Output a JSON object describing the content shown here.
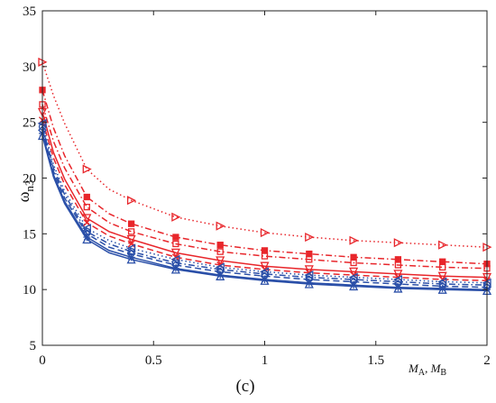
{
  "chart_data": {
    "type": "line",
    "ylabel": "ω",
    "ylabel_sub": "n3",
    "panel_label": "(c)",
    "inline_xlabel": "M",
    "inline_xlabel_sub_a": "A",
    "inline_xlabel_sep": ", M",
    "inline_xlabel_sub_b": "B",
    "xlim": [
      0,
      2
    ],
    "ylim": [
      5,
      35
    ],
    "xticks": [
      "0",
      "0.5",
      "1",
      "1.5",
      "2"
    ],
    "yticks": [
      "5",
      "10",
      "15",
      "20",
      "25",
      "30",
      "35"
    ],
    "x": [
      0,
      0.05,
      0.1,
      0.2,
      0.3,
      0.4,
      0.6,
      0.8,
      1.0,
      1.2,
      1.4,
      1.6,
      1.8,
      2.0
    ],
    "marker_x": [
      0,
      0.2,
      0.4,
      0.6,
      0.8,
      1.0,
      1.2,
      1.4,
      1.6,
      1.8,
      2.0
    ],
    "colors": {
      "red": "#e8262b",
      "blue": "#2a4fa8"
    },
    "series": [
      {
        "color": "red",
        "dash": "dotted",
        "marker": "triangle-right",
        "values": [
          30.4,
          27.4,
          24.9,
          20.8,
          19.0,
          18.0,
          16.5,
          15.7,
          15.1,
          14.7,
          14.4,
          14.2,
          14.0,
          13.8
        ]
      },
      {
        "color": "red",
        "dash": "dashdot",
        "marker": "square",
        "values": [
          27.9,
          24.5,
          22.0,
          18.3,
          16.8,
          15.9,
          14.7,
          14.0,
          13.5,
          13.2,
          12.9,
          12.7,
          12.5,
          12.3
        ]
      },
      {
        "color": "red",
        "dash": "dashdot",
        "marker": "square-open",
        "values": [
          26.6,
          23.3,
          20.9,
          17.4,
          16.0,
          15.2,
          14.1,
          13.4,
          13.0,
          12.7,
          12.4,
          12.2,
          12.0,
          11.9
        ]
      },
      {
        "color": "red",
        "dash": "solid",
        "marker": "triangle-down",
        "values": [
          25.9,
          22.3,
          19.9,
          16.4,
          15.2,
          14.5,
          13.3,
          12.6,
          12.1,
          11.8,
          11.6,
          11.4,
          11.2,
          11.1
        ]
      },
      {
        "color": "red",
        "dash": "dashed",
        "marker": "x",
        "values": [
          25.2,
          21.8,
          19.4,
          16.0,
          14.8,
          14.1,
          12.9,
          12.2,
          11.8,
          11.5,
          11.3,
          11.1,
          10.9,
          10.8
        ]
      },
      {
        "color": "blue",
        "dash": "dotted",
        "marker": "triangle-left",
        "values": [
          24.9,
          21.2,
          18.8,
          15.5,
          14.4,
          13.7,
          12.7,
          12.0,
          11.6,
          11.3,
          11.1,
          10.9,
          10.7,
          10.6
        ]
      },
      {
        "color": "blue",
        "dash": "dashdot",
        "marker": "circle",
        "values": [
          24.6,
          20.9,
          18.5,
          15.2,
          14.1,
          13.4,
          12.4,
          11.8,
          11.4,
          11.1,
          10.9,
          10.7,
          10.5,
          10.4
        ]
      },
      {
        "color": "blue",
        "dash": "dashed",
        "marker": "diamond",
        "values": [
          24.3,
          20.6,
          18.2,
          15.0,
          13.8,
          13.2,
          12.2,
          11.6,
          11.2,
          10.9,
          10.7,
          10.5,
          10.3,
          10.2
        ]
      },
      {
        "color": "blue",
        "dash": "solid",
        "marker": "star",
        "values": [
          24.0,
          20.3,
          17.9,
          14.7,
          13.5,
          12.9,
          11.9,
          11.3,
          10.9,
          10.6,
          10.4,
          10.2,
          10.1,
          10.0
        ]
      },
      {
        "color": "blue",
        "dash": "solid",
        "marker": "triangle-up",
        "values": [
          23.8,
          20.1,
          17.7,
          14.5,
          13.3,
          12.7,
          11.8,
          11.2,
          10.8,
          10.5,
          10.3,
          10.1,
          10.0,
          9.9
        ]
      }
    ]
  }
}
